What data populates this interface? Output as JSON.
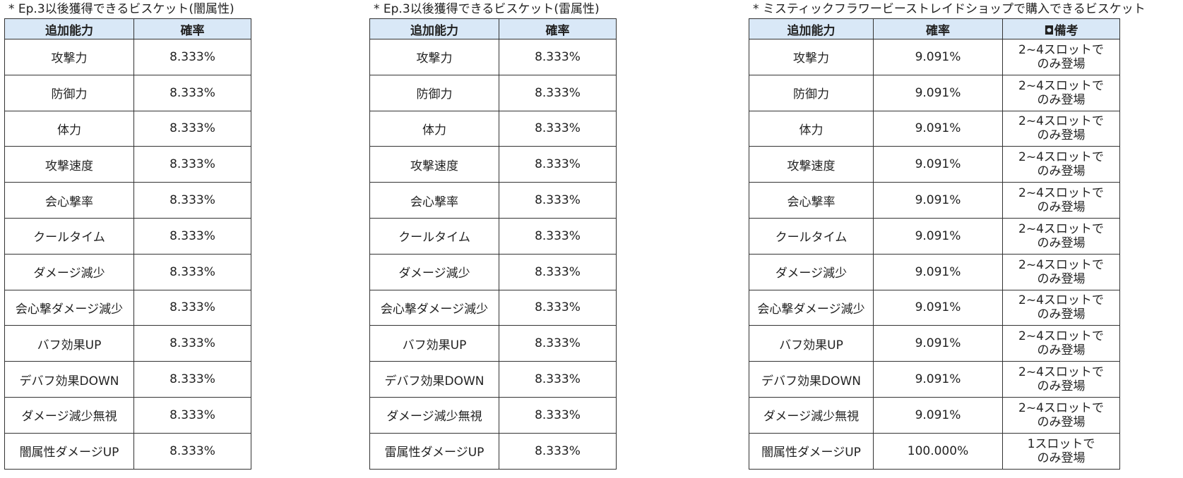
{
  "tables": [
    {
      "caption": "* Ep.3以後獲得できるビスケット(闇属性)",
      "headers": [
        "追加能力",
        "確率"
      ],
      "rows": [
        {
          "ability": "攻撃力",
          "rate": "8.333%"
        },
        {
          "ability": "防御力",
          "rate": "8.333%"
        },
        {
          "ability": "体力",
          "rate": "8.333%"
        },
        {
          "ability": "攻撃速度",
          "rate": "8.333%"
        },
        {
          "ability": "会心撃率",
          "rate": "8.333%"
        },
        {
          "ability": "クールタイム",
          "rate": "8.333%"
        },
        {
          "ability": "ダメージ減少",
          "rate": "8.333%"
        },
        {
          "ability": "会心撃ダメージ減少",
          "rate": "8.333%"
        },
        {
          "ability": "バフ効果UP",
          "rate": "8.333%"
        },
        {
          "ability": "デバフ効果DOWN",
          "rate": "8.333%"
        },
        {
          "ability": "ダメージ減少無視",
          "rate": "8.333%"
        },
        {
          "ability": "闇属性ダメージUP",
          "rate": "8.333%"
        }
      ]
    },
    {
      "caption": "* Ep.3以後獲得できるビスケット(雷属性)",
      "headers": [
        "追加能力",
        "確率"
      ],
      "rows": [
        {
          "ability": "攻撃力",
          "rate": "8.333%"
        },
        {
          "ability": "防御力",
          "rate": "8.333%"
        },
        {
          "ability": "体力",
          "rate": "8.333%"
        },
        {
          "ability": "攻撃速度",
          "rate": "8.333%"
        },
        {
          "ability": "会心撃率",
          "rate": "8.333%"
        },
        {
          "ability": "クールタイム",
          "rate": "8.333%"
        },
        {
          "ability": "ダメージ減少",
          "rate": "8.333%"
        },
        {
          "ability": "会心撃ダメージ減少",
          "rate": "8.333%"
        },
        {
          "ability": "バフ効果UP",
          "rate": "8.333%"
        },
        {
          "ability": "デバフ効果DOWN",
          "rate": "8.333%"
        },
        {
          "ability": "ダメージ減少無視",
          "rate": "8.333%"
        },
        {
          "ability": "雷属性ダメージUP",
          "rate": "8.333%"
        }
      ]
    },
    {
      "caption": "* ミスティックフラワービーストレイドショップで購入できるビスケット",
      "headers": [
        "追加能力",
        "確率",
        "◘備考"
      ],
      "rows": [
        {
          "ability": "攻撃力",
          "rate": "9.091%",
          "note": "2~4スロットで\nのみ登場"
        },
        {
          "ability": "防御力",
          "rate": "9.091%",
          "note": "2~4スロットで\nのみ登場"
        },
        {
          "ability": "体力",
          "rate": "9.091%",
          "note": "2~4スロットで\nのみ登場"
        },
        {
          "ability": "攻撃速度",
          "rate": "9.091%",
          "note": "2~4スロットで\nのみ登場"
        },
        {
          "ability": "会心撃率",
          "rate": "9.091%",
          "note": "2~4スロットで\nのみ登場"
        },
        {
          "ability": "クールタイム",
          "rate": "9.091%",
          "note": "2~4スロットで\nのみ登場"
        },
        {
          "ability": "ダメージ減少",
          "rate": "9.091%",
          "note": "2~4スロットで\nのみ登場"
        },
        {
          "ability": "会心撃ダメージ減少",
          "rate": "9.091%",
          "note": "2~4スロットで\nのみ登場"
        },
        {
          "ability": "バフ効果UP",
          "rate": "9.091%",
          "note": "2~4スロットで\nのみ登場"
        },
        {
          "ability": "デバフ効果DOWN",
          "rate": "9.091%",
          "note": "2~4スロットで\nのみ登場"
        },
        {
          "ability": "ダメージ減少無視",
          "rate": "9.091%",
          "note": "2~4スロットで\nのみ登場"
        },
        {
          "ability": "闇属性ダメージUP",
          "rate": "100.000%",
          "note": "1スロットで\nのみ登場"
        }
      ]
    }
  ]
}
